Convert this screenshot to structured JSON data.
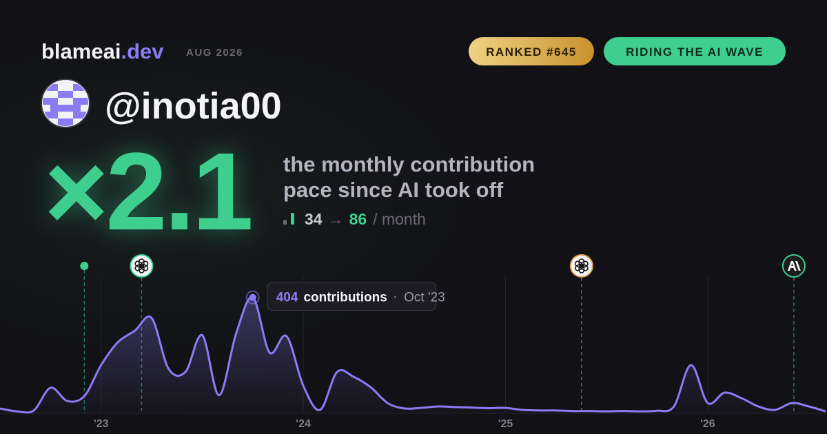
{
  "header": {
    "brand": {
      "name": "blameai",
      "tld": ".dev"
    },
    "date": "AUG 2026",
    "badges": [
      "RANKED #645",
      "RIDING THE AI WAVE"
    ]
  },
  "profile": {
    "handle": "@inotia00"
  },
  "hero": {
    "multiplier": "×2.1",
    "headline": [
      "the monthly contribution",
      "pace since AI took off"
    ],
    "stat": {
      "before": 34,
      "arrow": "→",
      "after": 86,
      "unit": "/ month"
    }
  },
  "chart_data": {
    "type": "area",
    "x": [
      2022.5,
      2022.583,
      2022.667,
      2022.75,
      2022.833,
      2022.917,
      2023,
      2023.083,
      2023.167,
      2023.25,
      2023.333,
      2023.417,
      2023.5,
      2023.583,
      2023.667,
      2023.75,
      2023.833,
      2023.917,
      2024,
      2024.083,
      2024.167,
      2024.25,
      2024.333,
      2024.417,
      2024.5,
      2024.583,
      2024.667,
      2024.75,
      2024.833,
      2024.917,
      2025,
      2025.083,
      2025.167,
      2025.25,
      2025.333,
      2025.417,
      2025.5,
      2025.583,
      2025.667,
      2025.75,
      2025.833,
      2025.917,
      2026,
      2026.083,
      2026.167,
      2026.25,
      2026.333,
      2026.417,
      2026.5,
      2026.583
    ],
    "series": [
      {
        "name": "contributions",
        "color": "#8b7cf6",
        "values": [
          17,
          7,
          10,
          89,
          43,
          60,
          168,
          248,
          288,
          332,
          156,
          144,
          272,
          63,
          276,
          404,
          212,
          269,
          96,
          12,
          144,
          127,
          91,
          36,
          17,
          19,
          24,
          22,
          20,
          18,
          19,
          12,
          10,
          10,
          8,
          8,
          7,
          8,
          7,
          9,
          24,
          168,
          36,
          72,
          53,
          24,
          12,
          36,
          24,
          7
        ]
      }
    ],
    "xlim": [
      2022.5,
      2026.59
    ],
    "ylim": [
      0,
      480
    ],
    "xticks": [
      {
        "value": 2023,
        "label": "'23"
      },
      {
        "value": 2024,
        "label": "'24"
      },
      {
        "value": 2025,
        "label": "'25"
      },
      {
        "value": 2026,
        "label": "'26"
      }
    ],
    "grid": true,
    "events": [
      {
        "x": 2022.917,
        "icon": "dot",
        "color": "#3ecf8e"
      },
      {
        "x": 2023.2,
        "icon": "openai",
        "color": "#3ecf8e"
      },
      {
        "x": 2025.376,
        "icon": "openai",
        "color": "#d9a050"
      },
      {
        "x": 2026.426,
        "icon": "anthropic",
        "color": "#3ecf8e"
      }
    ],
    "tooltip": {
      "index": 15,
      "label": "contributions",
      "separator": "·",
      "date": "Oct '23"
    }
  }
}
